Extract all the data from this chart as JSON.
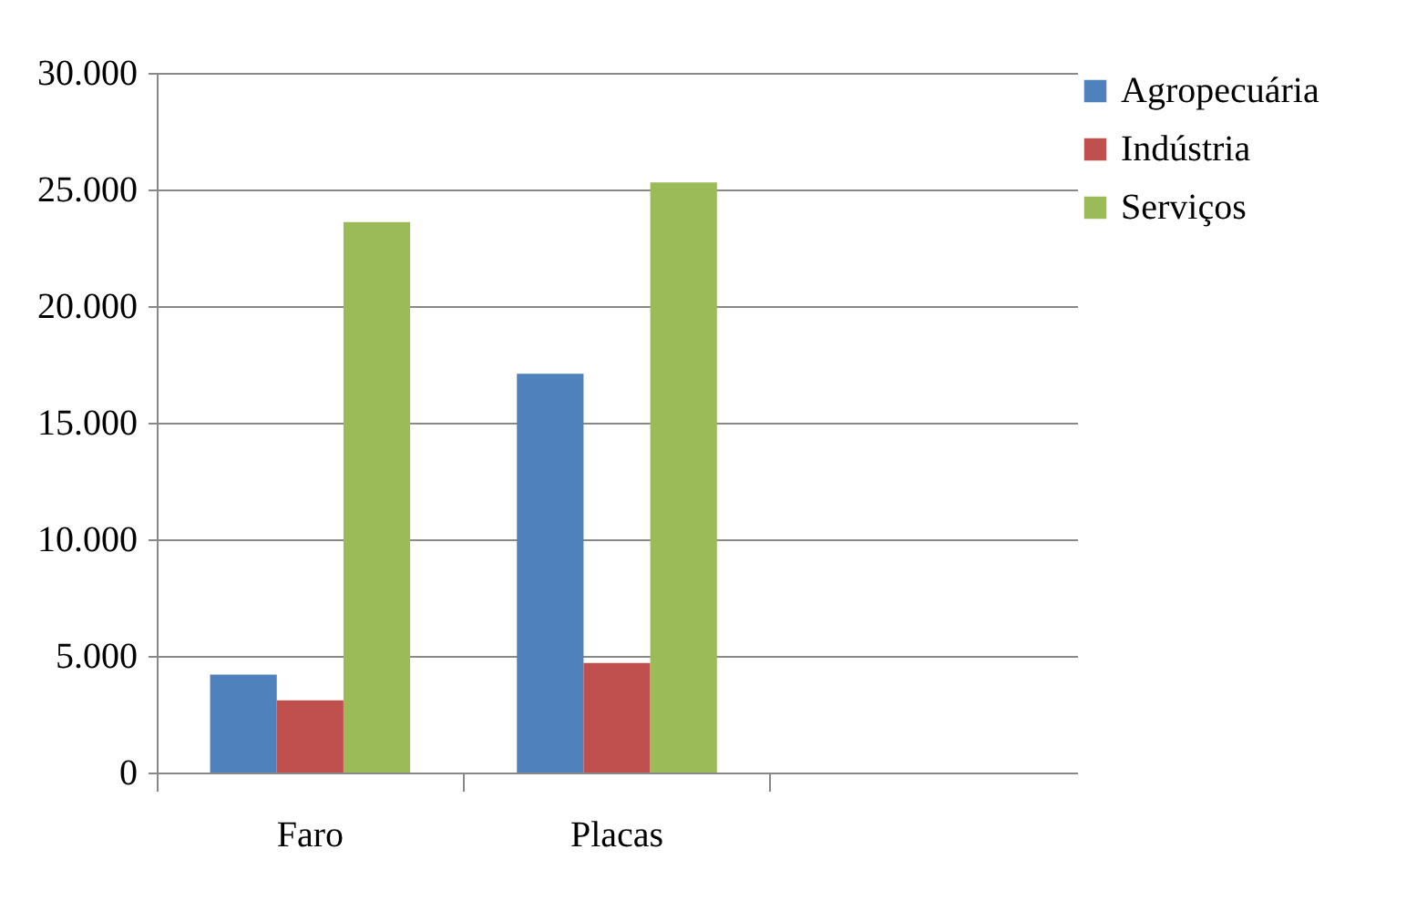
{
  "chart_data": {
    "type": "bar",
    "categories": [
      "Faro",
      "Placas",
      null
    ],
    "series": [
      {
        "name": "Agropecuária",
        "color": "#4f81bd",
        "values": [
          4200,
          17100,
          null
        ]
      },
      {
        "name": "Indústria",
        "color": "#c0504d",
        "values": [
          3100,
          4700,
          null
        ]
      },
      {
        "name": "Serviços",
        "color": "#9bbb59",
        "values": [
          23600,
          25300,
          null
        ]
      }
    ],
    "ylim": [
      0,
      30000
    ],
    "yticks": [
      {
        "value": 0,
        "label": "0"
      },
      {
        "value": 5000,
        "label": "5.000"
      },
      {
        "value": 10000,
        "label": "10.000"
      },
      {
        "value": 15000,
        "label": "15.000"
      },
      {
        "value": 20000,
        "label": "20.000"
      },
      {
        "value": 25000,
        "label": "25.000"
      },
      {
        "value": 30000,
        "label": "30.000"
      }
    ],
    "grid": "y",
    "legend": "right"
  }
}
